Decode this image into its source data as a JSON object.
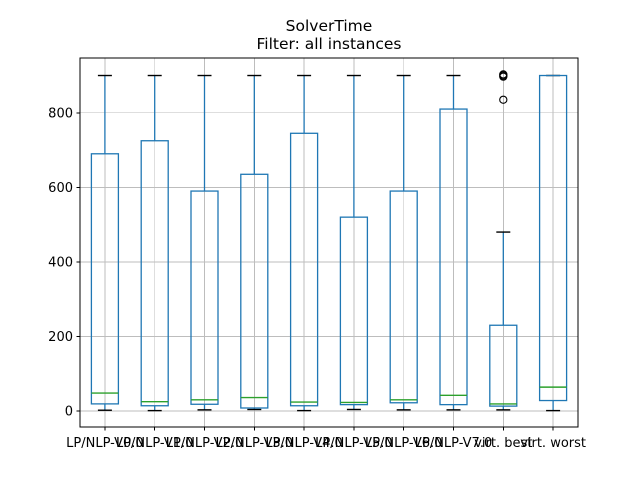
{
  "figure": {
    "title": "SolverTime",
    "subtitle": "Filter: all instances",
    "background": "#ffffff"
  },
  "chart_data": {
    "type": "boxplot",
    "title": "SolverTime",
    "subtitle": "Filter: all instances",
    "xlabel": "",
    "ylabel": "",
    "yticks": [
      0,
      200,
      400,
      600,
      800
    ],
    "ylim": [
      -43,
      947
    ],
    "grid": true,
    "timeout_ceiling": 900,
    "categories": [
      "LP/NLP-V0.0",
      "LP/NLP-V1.0",
      "LP/NLP-V2.0",
      "LP/NLP-V3.0",
      "LP/NLP-V4.0",
      "LP/NLP-V5.0",
      "LP/NLP-V6.0",
      "LP/NLP-V7.0",
      "virt. best",
      "virt. worst"
    ],
    "boxes": [
      {
        "whislo": 2,
        "q1": 19,
        "med": 48,
        "q3": 690,
        "whishi": 900,
        "fliers": []
      },
      {
        "whislo": 1,
        "q1": 14,
        "med": 25,
        "q3": 725,
        "whishi": 900,
        "fliers": []
      },
      {
        "whislo": 3,
        "q1": 18,
        "med": 30,
        "q3": 590,
        "whishi": 900,
        "fliers": []
      },
      {
        "whislo": 4,
        "q1": 8,
        "med": 36,
        "q3": 635,
        "whishi": 900,
        "fliers": []
      },
      {
        "whislo": 1,
        "q1": 14,
        "med": 24,
        "q3": 745,
        "whishi": 900,
        "fliers": []
      },
      {
        "whislo": 4,
        "q1": 17,
        "med": 23,
        "q3": 520,
        "whishi": 900,
        "fliers": []
      },
      {
        "whislo": 3,
        "q1": 22,
        "med": 30,
        "q3": 590,
        "whishi": 900,
        "fliers": []
      },
      {
        "whislo": 3,
        "q1": 17,
        "med": 42,
        "q3": 810,
        "whishi": 900,
        "fliers": []
      },
      {
        "whislo": 3,
        "q1": 13,
        "med": 19,
        "q3": 230,
        "whishi": 480,
        "fliers": [
          835,
          897,
          900,
          903
        ]
      },
      {
        "whislo": 1,
        "q1": 28,
        "med": 64,
        "q3": 900,
        "whishi": 900,
        "fliers": []
      }
    ],
    "colors": {
      "box": "#1f77b4",
      "whisker": "#1f77b4",
      "median": "#2ca02c",
      "cap": "#000000",
      "flier": "#000000",
      "grid": "#bdbdbd",
      "spine": "#000000"
    }
  }
}
